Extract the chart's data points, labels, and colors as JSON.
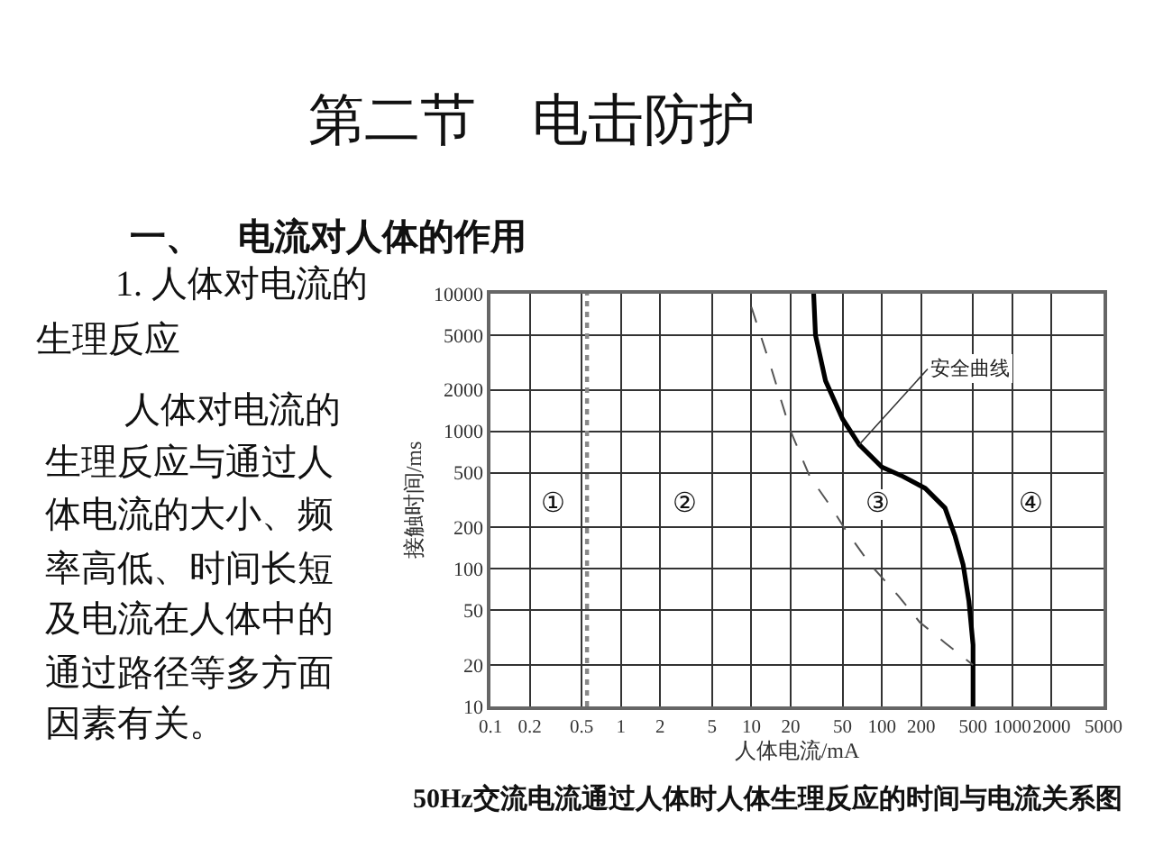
{
  "chart_data": {
    "type": "line",
    "title": "第二节　电击防护",
    "subtitle": "一、　电流对人体的作用",
    "xlabel": "人体电流/mA",
    "ylabel": "接触时间/ms",
    "log": "xy",
    "xlim": [
      0.1,
      5000
    ],
    "xticks": [
      0.1,
      0.2,
      0.5,
      1,
      2,
      5,
      10,
      20,
      50,
      100,
      200,
      500,
      1000,
      2000,
      5000
    ],
    "ylim": [
      10,
      10000
    ],
    "yticks": [
      10,
      20,
      50,
      100,
      200,
      500,
      1000,
      2000,
      5000,
      10000
    ],
    "grid": true,
    "marker": "none",
    "series": [
      {
        "color": "#000000",
        "line_style": "solid",
        "x": [
          30,
          31,
          37,
          50,
          67,
          100,
          145,
          215,
          305,
          364,
          420,
          465,
          500,
          500
        ],
        "values": [
          10000,
          5000,
          2330,
          1230,
          800,
          550,
          470,
          385,
          277,
          173,
          107,
          58,
          28,
          10
        ]
      },
      {
        "color": "#555555",
        "line_style": "dashed",
        "x": [
          10,
          14,
          20,
          28,
          41,
          53,
          82,
          133,
          195,
          305,
          500
        ],
        "values": [
          8000,
          3000,
          1000,
          470,
          280,
          190,
          107,
          64,
          41,
          29,
          20
        ]
      }
    ],
    "ref_lines": [
      {
        "axis": "x",
        "value": 0.55,
        "color": "#888888",
        "line_style": "dotted"
      }
    ],
    "annotations": [
      "1. 人体对电流的生理反应",
      "人体对电流的生理反应与通过人体电流的大小、频率高低、时间长短及电流在人体中的通过路径等多方面因素有关。",
      {
        "text": "安全曲线",
        "x": 67,
        "y": 800
      },
      "①",
      "②",
      "③",
      "④",
      "50Hz交流电流通过人体时人体生理反应的时间与电流关系图"
    ]
  }
}
